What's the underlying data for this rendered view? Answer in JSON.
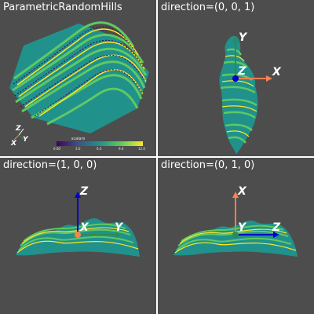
{
  "panels": [
    {
      "title": "ParametricRandomHills",
      "view": "isometric",
      "triad": {
        "x": "X",
        "y": "Y",
        "z": "Z"
      },
      "colorbar": {
        "title": "scalars",
        "ticks": [
          "0.00",
          "3.0",
          "6.0",
          "9.0",
          "12.0"
        ],
        "colormap": "viridis"
      }
    },
    {
      "title": "direction=(0, 0, 1)",
      "axes": {
        "x": "X",
        "y": "Y",
        "z": "Z"
      }
    },
    {
      "title": "direction=(1, 0, 0)",
      "axes": {
        "x": "X",
        "y": "Y",
        "z": "Z"
      }
    },
    {
      "title": "direction=(0, 1, 0)",
      "axes": {
        "x": "X",
        "y": "Y",
        "z": "Z"
      }
    }
  ],
  "colors": {
    "background": "#4d4d4d",
    "separator": "#ffffff",
    "x_axis": "#ff7f50",
    "y_axis": "#2e8b57",
    "z_axis": "#0000cd",
    "surface_low": "#440154",
    "surface_high": "#fde725"
  }
}
